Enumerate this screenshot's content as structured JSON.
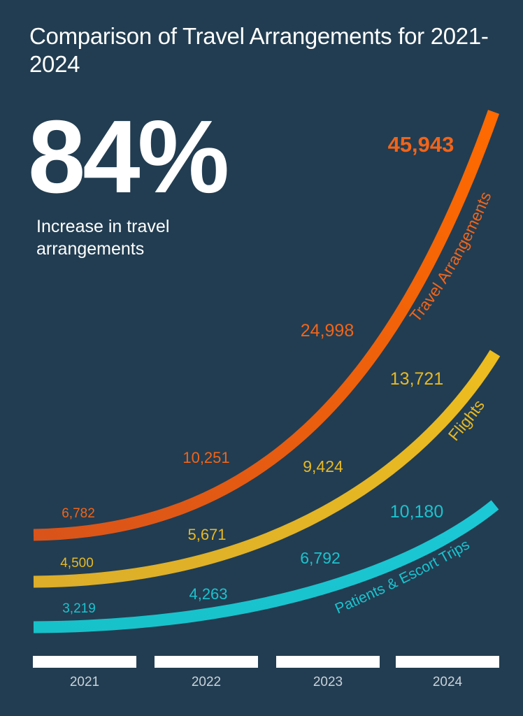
{
  "title": "Comparison of Travel Arrangements for 2021-2024",
  "headline_stat": {
    "value": "84%",
    "caption": "Increase in travel arrangements"
  },
  "colors": {
    "background": "#223d51",
    "travel_arrangements": "#f26419",
    "flights": "#e8b923",
    "patients_escort": "#1bc3cf"
  },
  "chart_data": {
    "type": "line",
    "categories": [
      "2021",
      "2022",
      "2023",
      "2024"
    ],
    "series": [
      {
        "name": "Travel Arrangements",
        "values": [
          6782,
          10251,
          24998,
          45943
        ],
        "labels": [
          "6,782",
          "10,251",
          "24,998",
          "45,943"
        ]
      },
      {
        "name": "Flights",
        "values": [
          4500,
          5671,
          9424,
          13721
        ],
        "labels": [
          "4,500",
          "5,671",
          "9,424",
          "13,721"
        ]
      },
      {
        "name": "Patients & Escort Trips",
        "values": [
          3219,
          4263,
          6792,
          10180
        ],
        "labels": [
          "3,219",
          "4,263",
          "6,792",
          "10,180"
        ]
      }
    ],
    "title": "Comparison of Travel Arrangements for 2021-2024",
    "xlabel": "",
    "ylabel": "",
    "grid": false,
    "legend": "inline labels along curves"
  }
}
